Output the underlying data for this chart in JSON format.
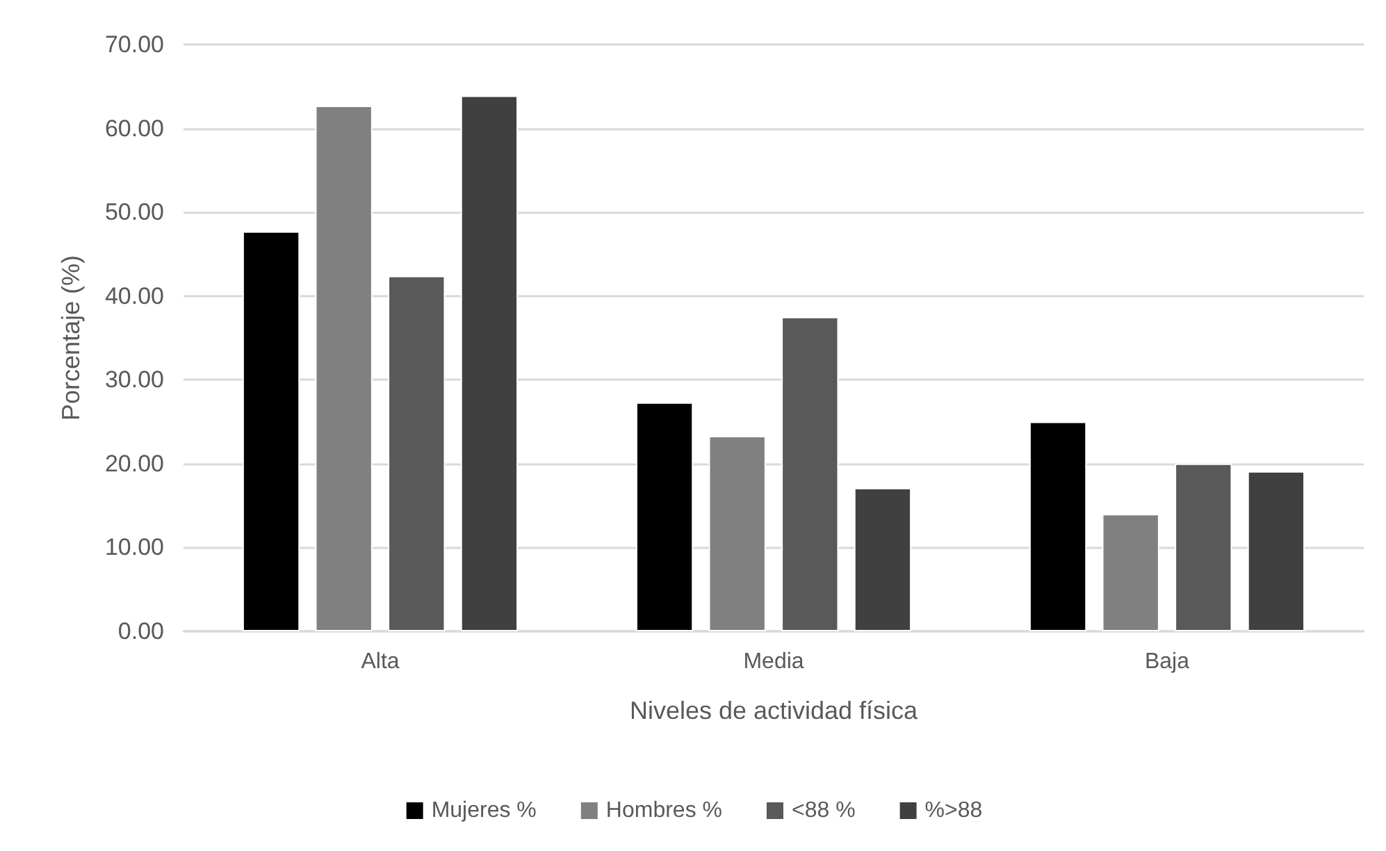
{
  "chart_data": {
    "type": "bar",
    "xlabel": "Niveles de actividad física",
    "ylabel": "Porcentaje (%)",
    "categories": [
      "Alta",
      "Media",
      "Baja"
    ],
    "series": [
      {
        "name": "Mujeres %",
        "color": "#000000",
        "values": [
          47.7,
          27.3,
          25.0
        ]
      },
      {
        "name": "Hombres %",
        "color": "#808080",
        "values": [
          62.7,
          23.3,
          14.0
        ]
      },
      {
        "name": "<88 %",
        "color": "#595959",
        "values": [
          42.4,
          37.5,
          20.0
        ]
      },
      {
        "name": "%>88",
        "color": "#404040",
        "values": [
          63.9,
          17.1,
          19.1
        ]
      }
    ],
    "ylim": [
      0,
      70
    ],
    "yticks": [
      {
        "value": 0,
        "label": "0.00"
      },
      {
        "value": 10,
        "label": "10.00"
      },
      {
        "value": 20,
        "label": "20.00"
      },
      {
        "value": 30,
        "label": "30.00"
      },
      {
        "value": 40,
        "label": "40.00"
      },
      {
        "value": 50,
        "label": "50.00"
      },
      {
        "value": 60,
        "label": "60.00"
      },
      {
        "value": 70,
        "label": "70.00"
      }
    ],
    "grid": "y",
    "legend": "bottom"
  }
}
